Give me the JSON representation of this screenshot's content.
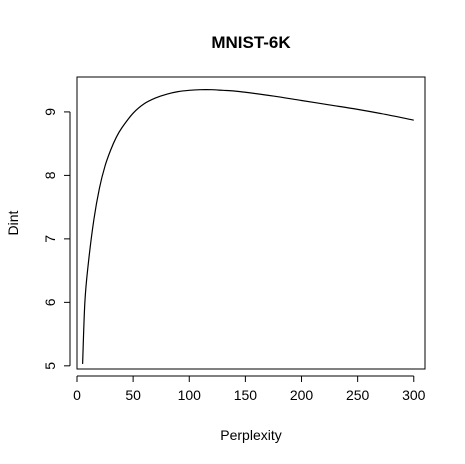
{
  "chart_data": {
    "type": "line",
    "title": "MNIST-6K",
    "xlabel": "Perplexity",
    "ylabel": "Dint",
    "xlim": [
      0,
      310
    ],
    "ylim": [
      4.95,
      9.55
    ],
    "xticks": [
      0,
      50,
      100,
      150,
      200,
      250,
      300
    ],
    "yticks": [
      5,
      6,
      7,
      8,
      9
    ],
    "grid": false,
    "series": [
      {
        "color": "#000000",
        "x": [
          5,
          7,
          10,
          15,
          20,
          25,
          30,
          35,
          40,
          50,
          60,
          70,
          80,
          90,
          100,
          110,
          120,
          130,
          140,
          150,
          175,
          200,
          225,
          250,
          275,
          300
        ],
        "y": [
          5.03,
          6.0,
          6.6,
          7.3,
          7.8,
          8.15,
          8.4,
          8.6,
          8.75,
          8.98,
          9.13,
          9.22,
          9.28,
          9.32,
          9.34,
          9.35,
          9.35,
          9.34,
          9.33,
          9.31,
          9.25,
          9.18,
          9.11,
          9.04,
          8.96,
          8.87
        ]
      }
    ]
  }
}
